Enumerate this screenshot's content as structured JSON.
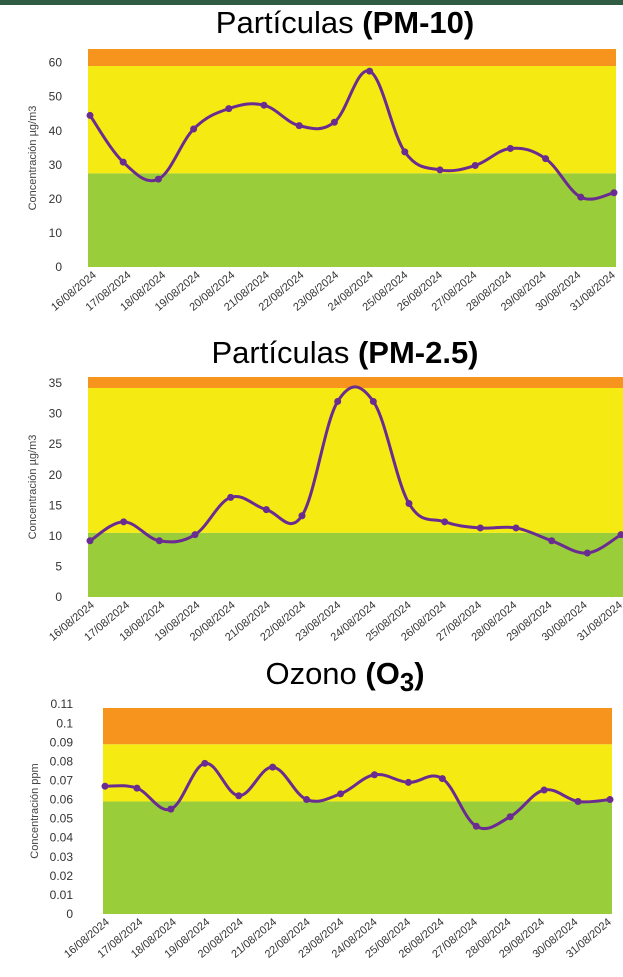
{
  "colors": {
    "header_band": "#2f5c42",
    "band_good": "#9acd3a",
    "band_moderate": "#f5ea12",
    "band_unhealthy": "#f7941d",
    "line": "#6a2c91"
  },
  "chart_data": [
    {
      "type": "line",
      "title_prefix": "Partículas ",
      "title_bold": "(PM-10)",
      "title_sub": "",
      "title_after": "",
      "ylabel": "Concentración µg/m3",
      "ylim": [
        0,
        64
      ],
      "yticks": [
        "0",
        "10",
        "20",
        "30",
        "40",
        "50",
        "60"
      ],
      "ytick_values": [
        0,
        10,
        20,
        30,
        40,
        50,
        60
      ],
      "bands": [
        {
          "from": 0,
          "to": 27.5,
          "level": "good"
        },
        {
          "from": 27.5,
          "to": 59,
          "level": "moderate"
        },
        {
          "from": 59,
          "to": 64,
          "level": "unhealthy"
        }
      ],
      "x": [
        "16/08/2024",
        "17/08/2024",
        "18/08/2024",
        "19/08/2024",
        "20/08/2024",
        "21/08/2024",
        "22/08/2024",
        "23/08/2024",
        "24/08/2024",
        "25/08/2024",
        "26/08/2024",
        "27/08/2024",
        "28/08/2024",
        "29/08/2024",
        "30/08/2024",
        "31/08/2024"
      ],
      "values": [
        44.5,
        30.8,
        25.8,
        40.5,
        46.5,
        47.5,
        41.5,
        42.5,
        57.5,
        33.8,
        28.5,
        29.8,
        34.8,
        31.8,
        20.5,
        21.8
      ]
    },
    {
      "type": "line",
      "title_prefix": "Partículas ",
      "title_bold": "(PM-2.5)",
      "title_sub": "",
      "title_after": "",
      "ylabel": "Concentración µg/m3",
      "ylim": [
        0,
        36
      ],
      "yticks": [
        "0",
        "5",
        "10",
        "15",
        "20",
        "25",
        "30",
        "35"
      ],
      "ytick_values": [
        0,
        5,
        10,
        15,
        20,
        25,
        30,
        35
      ],
      "bands": [
        {
          "from": 0,
          "to": 10.5,
          "level": "good"
        },
        {
          "from": 10.5,
          "to": 34.2,
          "level": "moderate"
        },
        {
          "from": 34.2,
          "to": 36,
          "level": "unhealthy"
        }
      ],
      "x": [
        "16/08/2024",
        "17/08/2024",
        "18/08/2024",
        "19/08/2024",
        "20/08/2024",
        "21/08/2024",
        "22/08/2024",
        "23/08/2024",
        "24/08/2024",
        "25/08/2024",
        "26/08/2024",
        "27/08/2024",
        "28/08/2024",
        "29/08/2024",
        "30/08/2024",
        "31/08/2024"
      ],
      "values": [
        9.2,
        12.3,
        9.2,
        10.2,
        16.3,
        14.3,
        13.3,
        32.0,
        32.0,
        15.3,
        12.3,
        11.3,
        11.3,
        9.2,
        7.2,
        10.2
      ]
    },
    {
      "type": "line",
      "title_prefix": "Ozono ",
      "title_bold": "(O",
      "title_sub": "3",
      "title_after": ")",
      "ylabel": "Concentración ppm",
      "ylim": [
        0,
        0.108
      ],
      "yticks": [
        "0",
        "0.01",
        "0.02",
        "0.03",
        "0.04",
        "0.05",
        "0.06",
        "0.07",
        "0.08",
        "0.09",
        "0.1",
        "0.11"
      ],
      "ytick_values": [
        0,
        0.01,
        0.02,
        0.03,
        0.04,
        0.05,
        0.06,
        0.07,
        0.08,
        0.09,
        0.1,
        0.11
      ],
      "bands": [
        {
          "from": 0,
          "to": 0.059,
          "level": "good"
        },
        {
          "from": 0.059,
          "to": 0.089,
          "level": "moderate"
        },
        {
          "from": 0.089,
          "to": 0.108,
          "level": "unhealthy"
        }
      ],
      "x": [
        "16/08/2024",
        "17/08/2024",
        "18/08/2024",
        "19/08/2024",
        "20/08/2024",
        "21/08/2024",
        "22/08/2024",
        "23/08/2024",
        "24/08/2024",
        "25/08/2024",
        "26/08/2024",
        "27/08/2024",
        "28/08/2024",
        "29/08/2024",
        "30/08/2024",
        "31/08/2024"
      ],
      "values": [
        0.067,
        0.066,
        0.055,
        0.079,
        0.062,
        0.077,
        0.06,
        0.063,
        0.073,
        0.069,
        0.071,
        0.046,
        0.051,
        0.065,
        0.059,
        0.06
      ]
    }
  ]
}
